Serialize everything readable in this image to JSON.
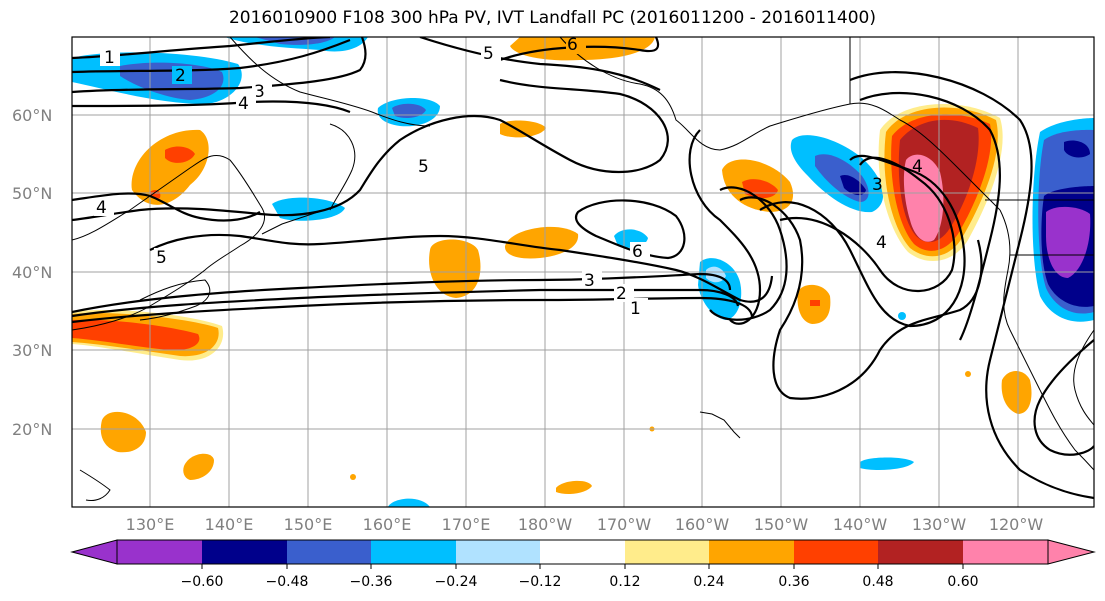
{
  "title": "2016010900 F108 300 hPa PV, IVT Landfall PC (2016011200 - 2016011400)",
  "lat_labels": [
    "60°N",
    "50°N",
    "40°N",
    "30°N",
    "20°N"
  ],
  "lon_labels": [
    "130°E",
    "140°E",
    "150°E",
    "160°E",
    "170°E",
    "180°W",
    "170°W",
    "160°W",
    "150°W",
    "140°W",
    "130°W",
    "120°W"
  ],
  "contour_labels": [
    "1",
    "2",
    "3",
    "4",
    "5",
    "6",
    "5",
    "4",
    "5",
    "6",
    "3",
    "2",
    "1",
    "4",
    "4",
    "3"
  ],
  "colorbar": {
    "ticks": [
      "−0.60",
      "−0.48",
      "−0.36",
      "−0.24",
      "−0.12",
      "0.12",
      "0.24",
      "0.36",
      "0.48",
      "0.60"
    ],
    "colors": [
      "#9932CC",
      "#00008B",
      "#3A5FCD",
      "#00BFFF",
      "#B0E2FF",
      "#FFFFFF",
      "#FFEC8B",
      "#FFA500",
      "#FF4000",
      "#B22222",
      "#FF82AB"
    ]
  },
  "fill_colors": {
    "yellow": "#FFEC8B",
    "orange": "#FFA500",
    "red": "#FF4000",
    "darkred": "#B22222",
    "pink": "#FF82AB",
    "cyan": "#00BFFF",
    "lightblue": "#B0E2FF",
    "blue": "#3A5FCD",
    "navy": "#00008B",
    "purple": "#9932CC"
  }
}
